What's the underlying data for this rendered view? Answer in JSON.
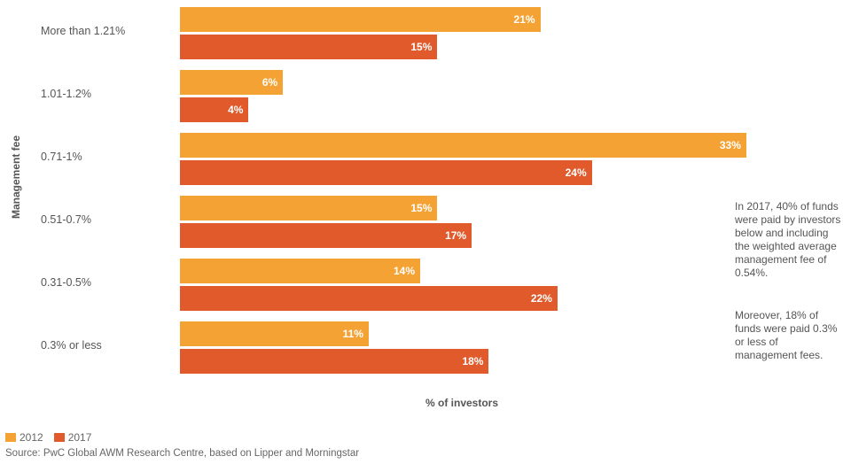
{
  "chart_data": {
    "type": "bar",
    "orientation": "horizontal",
    "categories": [
      "More than 1.21%",
      "1.01-1.2%",
      "0.71-1%",
      "0.51-0.7%",
      "0.31-0.5%",
      "0.3% or less"
    ],
    "series": [
      {
        "name": "2012",
        "values": [
          21,
          6,
          33,
          15,
          14,
          11
        ],
        "labels": [
          "21%",
          "6%",
          "33%",
          "15%",
          "14%",
          "11%"
        ],
        "color": "#f5a234"
      },
      {
        "name": "2017",
        "values": [
          15,
          4,
          24,
          17,
          22,
          18
        ],
        "labels": [
          "15%",
          "4%",
          "24%",
          "17%",
          "22%",
          "18%"
        ],
        "color": "#e05a2b"
      }
    ],
    "xlabel": "% of investors",
    "ylabel": "Management fee",
    "grid": false,
    "legend": "bottom-left"
  },
  "annotations": [
    "In 2017, 40% of funds were paid by investors below and including the weighted average management fee of 0.54%.",
    "Moreover, 18% of funds were paid 0.3% or less of management fees."
  ],
  "source": "Source: PwC Global AWM Research Centre, based on Lipper and Morningstar"
}
